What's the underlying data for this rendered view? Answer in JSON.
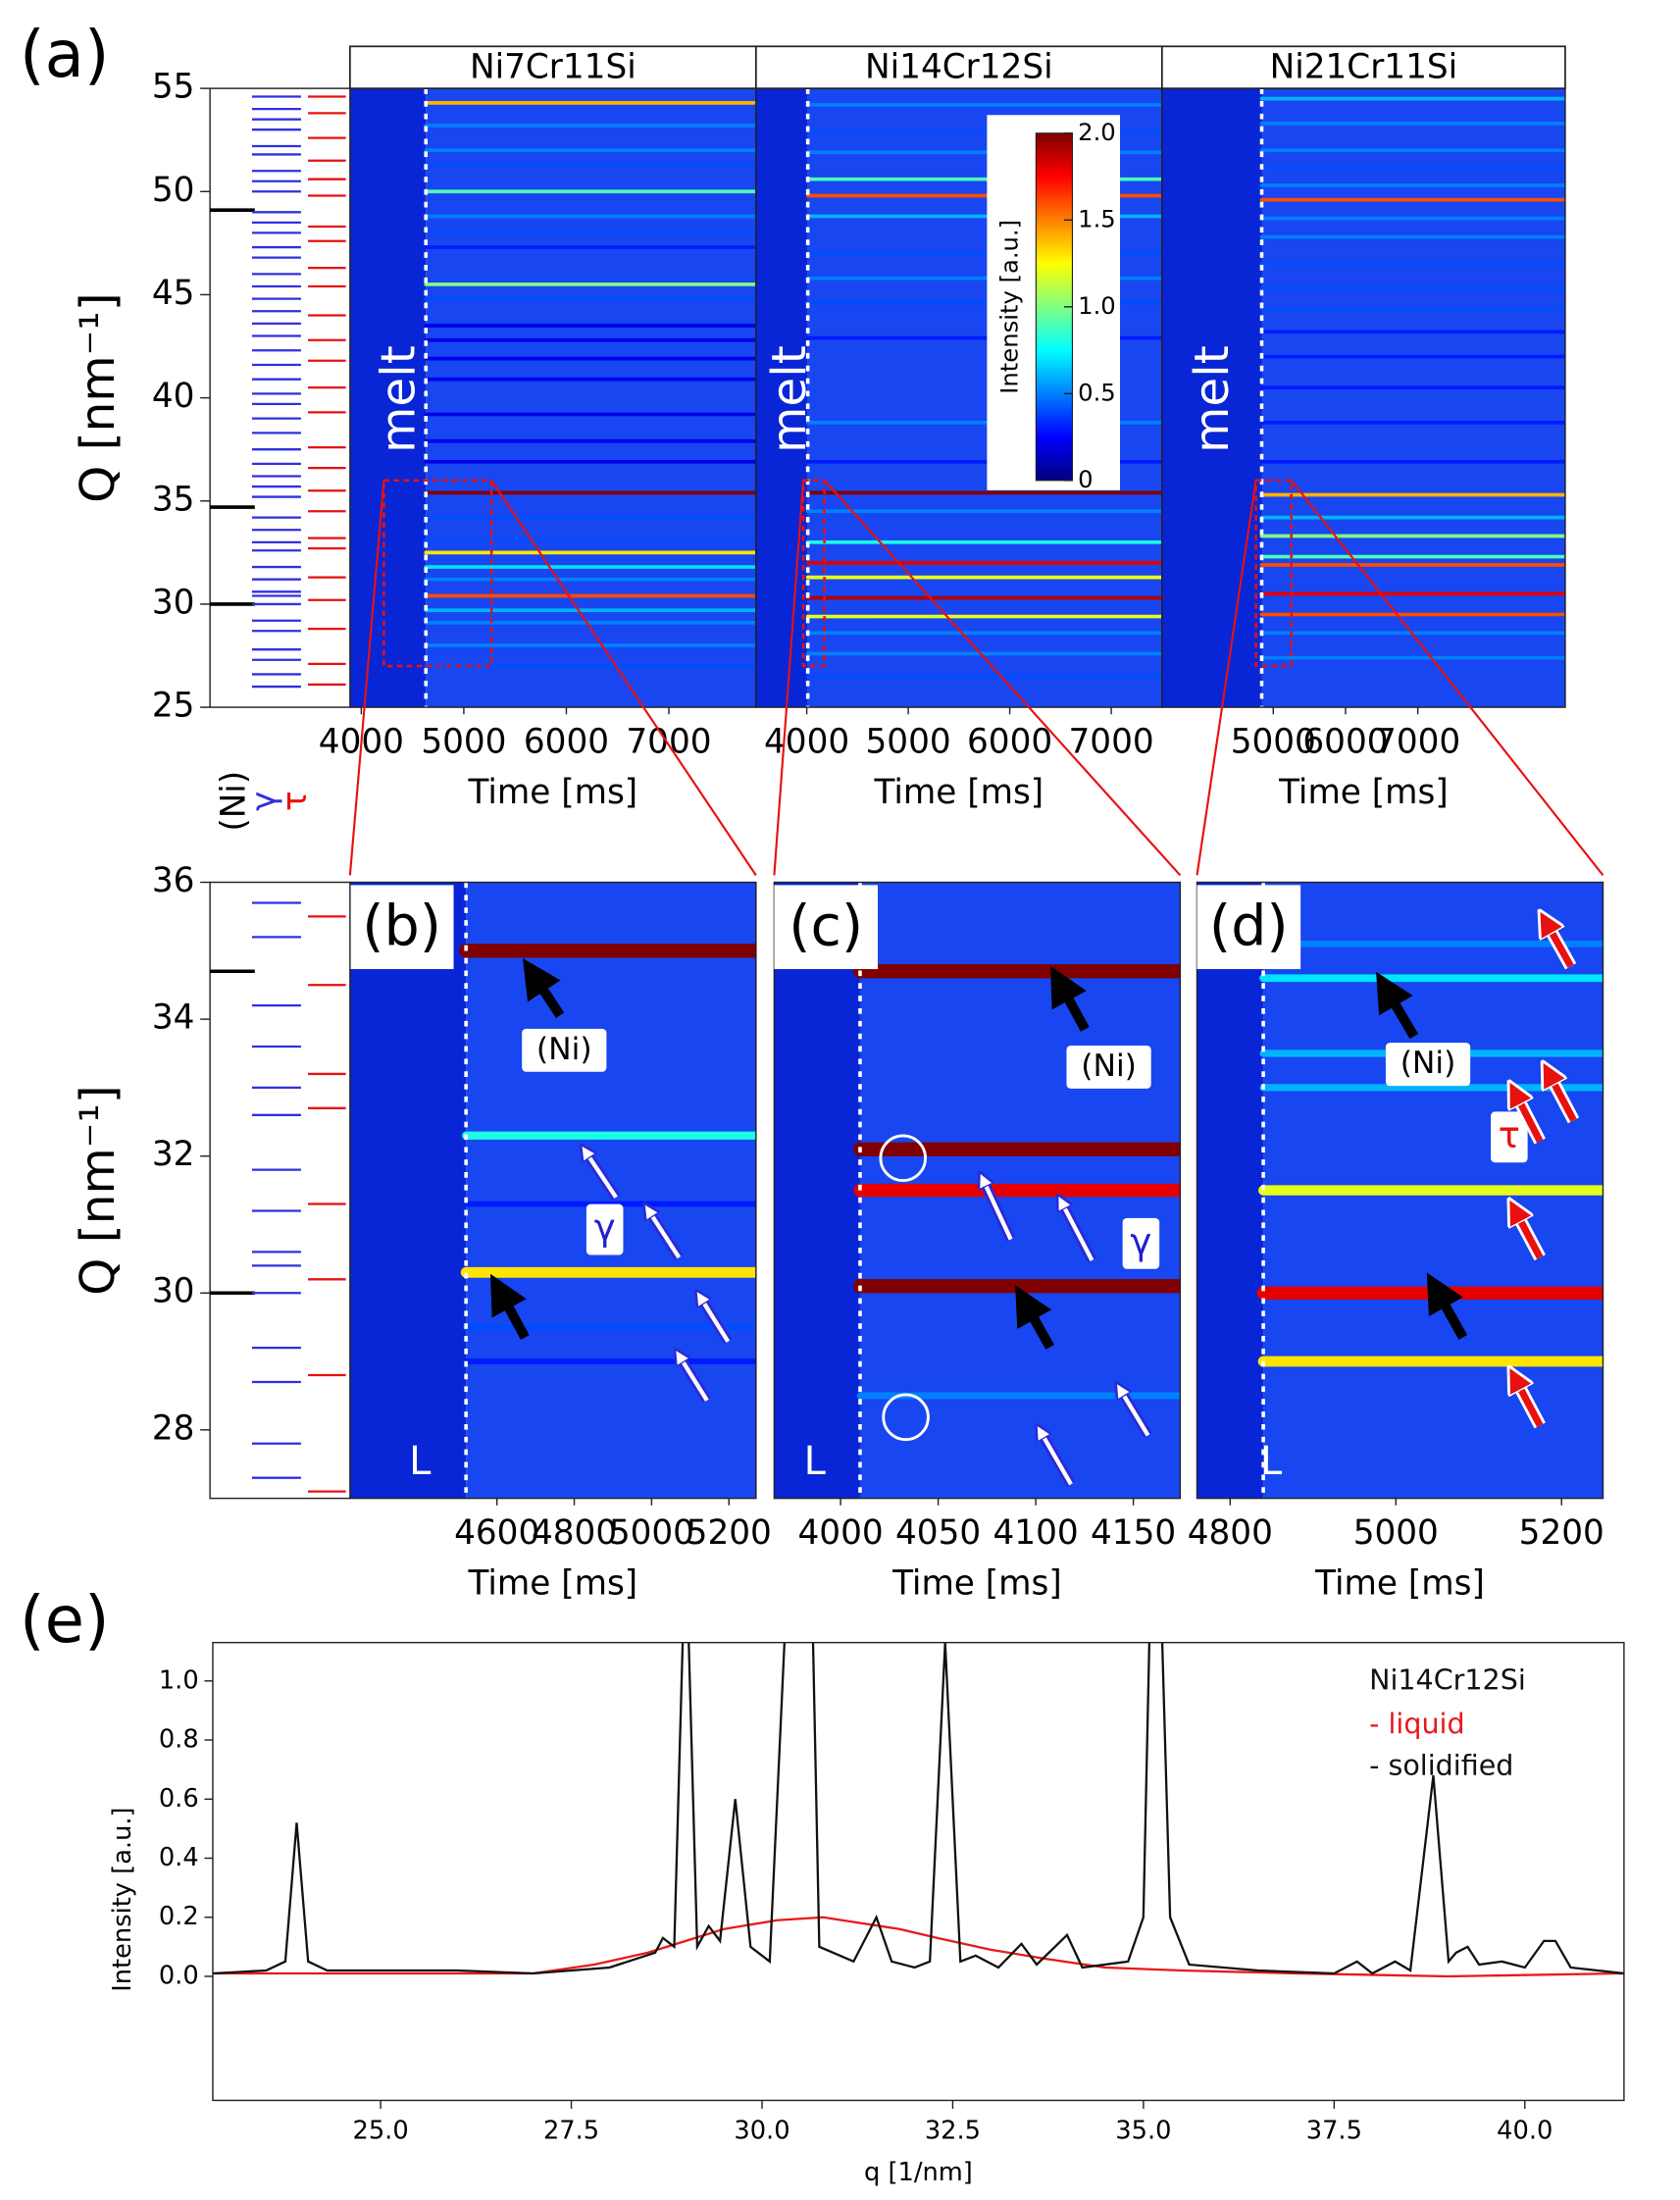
{
  "chart_data": [
    {
      "type": "heatmap",
      "panel_label": "(a)",
      "title": "Ni7Cr11Si",
      "xlabel": "Time [ms]",
      "ylabel": "Q [nm⁻¹]",
      "xlim": [
        3890,
        7850
      ],
      "xticks": [
        4000,
        5000,
        6000,
        7000
      ],
      "ylim": [
        25,
        55
      ],
      "yticks": [
        25,
        30,
        35,
        40,
        45,
        50,
        55
      ],
      "onset": 4630,
      "annotations": [
        "melt"
      ],
      "peaks": [
        {
          "q": 54.3,
          "i": 1.4
        },
        {
          "q": 53.2,
          "i": 0.5
        },
        {
          "q": 52.0,
          "i": 0.5
        },
        {
          "q": 51.3,
          "i": 0.4
        },
        {
          "q": 50.0,
          "i": 0.9
        },
        {
          "q": 48.8,
          "i": 0.5
        },
        {
          "q": 48.1,
          "i": 0.4
        },
        {
          "q": 47.3,
          "i": 0.3
        },
        {
          "q": 45.5,
          "i": 1.0
        },
        {
          "q": 44.8,
          "i": 0.4
        },
        {
          "q": 43.5,
          "i": 0.2
        },
        {
          "q": 42.8,
          "i": 0.2
        },
        {
          "q": 41.9,
          "i": 0.2
        },
        {
          "q": 40.9,
          "i": 0.2
        },
        {
          "q": 39.2,
          "i": 0.2
        },
        {
          "q": 37.9,
          "i": 0.2
        },
        {
          "q": 36.9,
          "i": 0.2
        },
        {
          "q": 35.4,
          "i": 2.0
        },
        {
          "q": 34.2,
          "i": 0.4
        },
        {
          "q": 33.1,
          "i": 0.4
        },
        {
          "q": 32.5,
          "i": 1.3
        },
        {
          "q": 31.8,
          "i": 0.7
        },
        {
          "q": 31.2,
          "i": 0.5
        },
        {
          "q": 30.4,
          "i": 1.6
        },
        {
          "q": 29.7,
          "i": 0.6
        },
        {
          "q": 29.1,
          "i": 0.5
        },
        {
          "q": 28.0,
          "i": 0.5
        },
        {
          "q": 27.0,
          "i": 0.4
        }
      ]
    },
    {
      "type": "heatmap",
      "title": "Ni14Cr12Si",
      "xlabel": "Time [ms]",
      "xlim": [
        3500,
        7500
      ],
      "xticks": [
        4000,
        5000,
        6000,
        7000
      ],
      "ylim": [
        25,
        55
      ],
      "onset": 4010,
      "annotations": [
        "melt"
      ],
      "colorbar": {
        "label": "Intensity [a.u.]",
        "lim": [
          0,
          2
        ],
        "ticks": [
          0,
          0.5,
          {
            "value": 1,
            "label": "1.0"
          },
          1.5,
          {
            "value": 2,
            "label": "2.0"
          }
        ]
      },
      "peaks": [
        {
          "q": 54.2,
          "i": 0.5
        },
        {
          "q": 52.9,
          "i": 0.4
        },
        {
          "q": 51.9,
          "i": 0.5
        },
        {
          "q": 50.6,
          "i": 0.9
        },
        {
          "q": 49.8,
          "i": 1.6
        },
        {
          "q": 48.8,
          "i": 0.6
        },
        {
          "q": 47.0,
          "i": 0.4
        },
        {
          "q": 45.8,
          "i": 0.5
        },
        {
          "q": 44.6,
          "i": 0.4
        },
        {
          "q": 42.9,
          "i": 0.3
        },
        {
          "q": 38.8,
          "i": 0.5
        },
        {
          "q": 36.9,
          "i": 0.3
        },
        {
          "q": 35.4,
          "i": 2.0
        },
        {
          "q": 34.5,
          "i": 0.5
        },
        {
          "q": 33.0,
          "i": 0.8
        },
        {
          "q": 32.0,
          "i": 1.8
        },
        {
          "q": 31.3,
          "i": 1.2
        },
        {
          "q": 30.3,
          "i": 1.9
        },
        {
          "q": 29.4,
          "i": 1.2
        },
        {
          "q": 28.6,
          "i": 0.5
        },
        {
          "q": 27.6,
          "i": 0.5
        },
        {
          "q": 26.5,
          "i": 0.4
        }
      ]
    },
    {
      "type": "heatmap",
      "title": "Ni21Cr11Si",
      "xlabel": "Time [ms]",
      "xlim": [
        3460,
        9040
      ],
      "xticks": [
        5000,
        6000,
        7000
      ],
      "ylim": [
        25,
        55
      ],
      "onset": 4840,
      "annotations": [
        "melt"
      ],
      "peaks": [
        {
          "q": 54.5,
          "i": 0.6
        },
        {
          "q": 53.3,
          "i": 0.5
        },
        {
          "q": 52.0,
          "i": 0.5
        },
        {
          "q": 51.2,
          "i": 0.4
        },
        {
          "q": 50.3,
          "i": 0.5
        },
        {
          "q": 49.6,
          "i": 1.6
        },
        {
          "q": 48.7,
          "i": 0.5
        },
        {
          "q": 47.8,
          "i": 0.5
        },
        {
          "q": 46.5,
          "i": 0.4
        },
        {
          "q": 45.3,
          "i": 0.4
        },
        {
          "q": 44.3,
          "i": 0.4
        },
        {
          "q": 43.2,
          "i": 0.3
        },
        {
          "q": 42.0,
          "i": 0.3
        },
        {
          "q": 40.5,
          "i": 0.3
        },
        {
          "q": 38.8,
          "i": 0.3
        },
        {
          "q": 36.9,
          "i": 0.3
        },
        {
          "q": 35.3,
          "i": 1.4
        },
        {
          "q": 34.2,
          "i": 0.6
        },
        {
          "q": 33.3,
          "i": 1.0
        },
        {
          "q": 32.3,
          "i": 0.9
        },
        {
          "q": 31.9,
          "i": 1.6
        },
        {
          "q": 30.5,
          "i": 1.8
        },
        {
          "q": 29.5,
          "i": 1.6
        },
        {
          "q": 28.6,
          "i": 0.5
        },
        {
          "q": 27.4,
          "i": 0.5
        }
      ]
    },
    {
      "type": "heatmap",
      "panel_label": "(b)",
      "xlabel": "Time [ms]",
      "ylabel": "Q [nm⁻¹]",
      "xlim": [
        4220,
        5270
      ],
      "xticks": [
        4600,
        4800,
        5000,
        5200
      ],
      "ylim": [
        27,
        36
      ],
      "yticks": [
        28,
        30,
        32,
        34,
        36
      ],
      "onset": 4520,
      "annotations": [
        "(Ni)",
        "γ",
        "L"
      ],
      "peaks": [
        {
          "q": 35.0,
          "i": 2.0
        },
        {
          "q": 32.3,
          "i": 0.8
        },
        {
          "q": 31.3,
          "i": 0.3
        },
        {
          "q": 30.3,
          "i": 1.3
        },
        {
          "q": 29.5,
          "i": 0.4
        },
        {
          "q": 29.0,
          "i": 0.3
        }
      ]
    },
    {
      "type": "heatmap",
      "panel_label": "(c)",
      "xlabel": "Time [ms]",
      "xlim": [
        3966,
        4174
      ],
      "xticks": [
        4000,
        4050,
        4100,
        4150
      ],
      "ylim": [
        27,
        36
      ],
      "onset": 4010,
      "annotations": [
        "(Ni)",
        "γ",
        "L"
      ],
      "peaks": [
        {
          "q": 34.7,
          "i": 2.0
        },
        {
          "q": 32.1,
          "i": 2.0
        },
        {
          "q": 31.5,
          "i": 1.8
        },
        {
          "q": 30.1,
          "i": 2.0
        },
        {
          "q": 28.5,
          "i": 0.5
        }
      ]
    },
    {
      "type": "heatmap",
      "panel_label": "(d)",
      "xlabel": "Time [ms]",
      "xlim": [
        4760,
        5250
      ],
      "xticks": [
        4800,
        5000,
        5200
      ],
      "ylim": [
        27,
        36
      ],
      "onset": 4840,
      "annotations": [
        "(Ni)",
        "τ",
        "L"
      ],
      "peaks": [
        {
          "q": 35.1,
          "i": 0.5
        },
        {
          "q": 34.6,
          "i": 0.7
        },
        {
          "q": 33.5,
          "i": 0.6
        },
        {
          "q": 33.0,
          "i": 0.6
        },
        {
          "q": 31.5,
          "i": 1.2
        },
        {
          "q": 30.0,
          "i": 1.8
        },
        {
          "q": 29.0,
          "i": 1.3
        }
      ]
    },
    {
      "type": "line",
      "panel_label": "(e)",
      "xlabel": "q [1/nm]",
      "ylabel": "Intensity [a.u.]",
      "legend_title": "Ni14Cr12Si",
      "xlim": [
        22.8,
        41.3
      ],
      "xticks": [
        {
          "value": 25,
          "label": "25.0"
        },
        27.5,
        {
          "value": 30,
          "label": "30.0"
        },
        32.5,
        {
          "value": 35,
          "label": "35.0"
        },
        37.5,
        {
          "value": 40,
          "label": "40.0"
        }
      ],
      "ylim": [
        -0.42,
        1.13
      ],
      "yticks": [
        {
          "value": 0,
          "label": "0.0"
        },
        0.2,
        0.4,
        0.6,
        0.8,
        {
          "value": 1,
          "label": "1.0"
        }
      ],
      "series": [
        {
          "name": "- liquid",
          "color": "#e8191c",
          "x": [
            22.8,
            25,
            27,
            27.8,
            28.5,
            29.0,
            29.5,
            30.2,
            30.8,
            31.3,
            31.8,
            32.3,
            33.0,
            33.7,
            34.5,
            35.5,
            37,
            39,
            41.3
          ],
          "values": [
            0.01,
            0.01,
            0.01,
            0.04,
            0.08,
            0.12,
            0.16,
            0.19,
            0.2,
            0.18,
            0.16,
            0.13,
            0.09,
            0.06,
            0.03,
            0.02,
            0.01,
            0.0,
            0.01
          ]
        },
        {
          "name": "- solidified",
          "color": "#111111",
          "x": [
            22.8,
            23.5,
            23.75,
            23.9,
            24.05,
            24.3,
            26,
            27,
            28.0,
            28.6,
            28.7,
            28.85,
            29.0,
            29.15,
            29.3,
            29.45,
            29.65,
            29.85,
            30.1,
            30.45,
            30.6,
            30.75,
            31.2,
            31.5,
            31.7,
            32.0,
            32.2,
            32.4,
            32.6,
            32.8,
            33.1,
            33.4,
            33.6,
            34.0,
            34.2,
            34.8,
            35.0,
            35.15,
            35.35,
            35.6,
            36.5,
            37.5,
            37.8,
            38.0,
            38.3,
            38.5,
            38.8,
            39.0,
            39.1,
            39.25,
            39.4,
            39.7,
            40.0,
            40.25,
            40.4,
            40.6,
            41.3
          ],
          "values": [
            0.01,
            0.02,
            0.05,
            0.52,
            0.05,
            0.02,
            0.02,
            0.01,
            0.03,
            0.08,
            0.13,
            0.1,
            1.5,
            0.1,
            0.17,
            0.12,
            0.6,
            0.1,
            0.05,
            2.0,
            2.0,
            0.1,
            0.05,
            0.2,
            0.05,
            0.03,
            0.05,
            1.13,
            0.05,
            0.07,
            0.03,
            0.11,
            0.04,
            0.14,
            0.03,
            0.05,
            0.2,
            2.0,
            0.2,
            0.04,
            0.02,
            0.01,
            0.05,
            0.01,
            0.05,
            0.02,
            0.68,
            0.05,
            0.08,
            0.1,
            0.04,
            0.05,
            0.03,
            0.12,
            0.12,
            0.03,
            0.01
          ]
        }
      ]
    }
  ],
  "reference": {
    "series": [
      {
        "name": "(Ni)",
        "color": "#000000",
        "values": [
          49.1,
          34.7,
          30.0
        ]
      },
      {
        "name": "γ",
        "color": "#3030e0",
        "values": [
          54.6,
          54.0,
          53.5,
          53.0,
          52.2,
          51.8,
          51.0,
          50.5,
          50.0,
          49.0,
          48.5,
          48.0,
          47.3,
          46.8,
          46.0,
          45.4,
          44.8,
          44.2,
          43.6,
          43.0,
          42.3,
          41.6,
          40.9,
          40.2,
          39.7,
          39.0,
          38.3,
          37.5,
          36.8,
          36.2,
          35.7,
          35.2,
          34.2,
          33.6,
          33.0,
          32.6,
          31.8,
          31.2,
          30.6,
          30.4,
          30.0,
          29.2,
          28.7,
          27.8,
          27.3,
          26.6,
          26.0
        ]
      },
      {
        "name": "τ",
        "color": "#e81010",
        "values": [
          54.6,
          53.8,
          52.6,
          51.5,
          50.6,
          49.8,
          48.3,
          47.6,
          46.3,
          45.4,
          44.0,
          42.8,
          41.8,
          40.5,
          39.3,
          37.6,
          36.6,
          35.5,
          34.5,
          33.2,
          32.7,
          31.3,
          30.2,
          28.8,
          27.1,
          26.1
        ]
      }
    ]
  }
}
